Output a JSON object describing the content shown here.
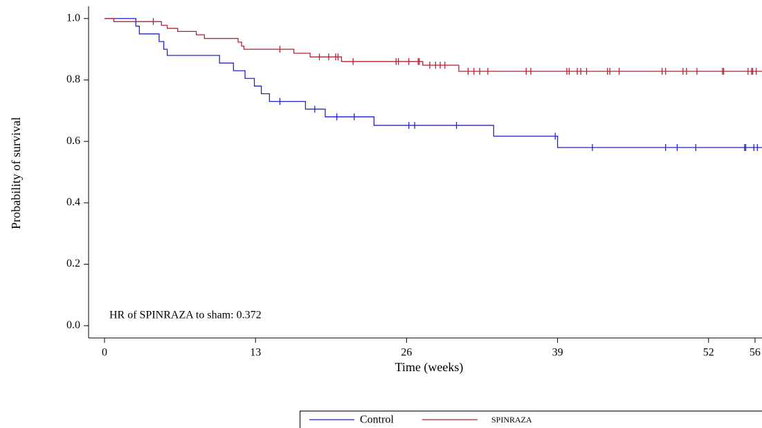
{
  "chart_data": {
    "type": "step",
    "xlabel": "Time (weeks)",
    "ylabel": "Probability of survival",
    "annotation": "HR of SPINRAZA to sham: 0.372",
    "xlim": [
      -1.37,
      56.6
    ],
    "ylim": [
      -0.04,
      1.04
    ],
    "xticks": [
      0,
      13,
      26,
      39,
      52,
      56
    ],
    "yticks": [
      {
        "value": 0,
        "label": "0.0"
      },
      {
        "value": 0.2,
        "label": "0.2"
      },
      {
        "value": 0.4,
        "label": "0.4"
      },
      {
        "value": 0.6,
        "label": "0.6"
      },
      {
        "value": 0.8,
        "label": "0.8"
      },
      {
        "value": 1,
        "label": "1.0"
      }
    ],
    "series": [
      {
        "name": "Control",
        "color": "#2222cc",
        "x": [
          0,
          2.7,
          3.0,
          4.7,
          5.1,
          5.4,
          9.9,
          11.1,
          12.1,
          12.9,
          13.5,
          14.2,
          17.3,
          19.0,
          23.2,
          33.5,
          39.0
        ],
        "values": [
          1.0,
          0.975,
          0.95,
          0.925,
          0.9,
          0.88,
          0.855,
          0.83,
          0.805,
          0.78,
          0.755,
          0.73,
          0.705,
          0.68,
          0.652,
          0.617,
          0.58
        ],
        "censor_x": [
          15.1,
          18.1,
          20.0,
          21.5,
          26.2,
          26.7,
          30.3,
          38.8,
          42.0,
          48.3,
          49.3,
          50.9,
          55.1,
          55.2,
          55.9,
          56.2
        ],
        "censor_values": [
          0.73,
          0.705,
          0.68,
          0.68,
          0.652,
          0.652,
          0.652,
          0.617,
          0.58,
          0.58,
          0.58,
          0.58,
          0.58,
          0.58,
          0.58,
          0.58
        ]
      },
      {
        "name": "SPINRAZA",
        "color": "#b22234",
        "x": [
          0,
          0.8,
          4.9,
          5.4,
          6.3,
          7.9,
          8.6,
          11.5,
          11.8,
          12.0,
          16.3,
          17.7,
          20.4,
          27.4,
          30.5
        ],
        "values": [
          1.0,
          0.99,
          0.978,
          0.968,
          0.958,
          0.947,
          0.935,
          0.923,
          0.91,
          0.9,
          0.887,
          0.875,
          0.86,
          0.848,
          0.828
        ],
        "censor_x": [
          4.2,
          15.1,
          18.5,
          19.3,
          19.9,
          20.1,
          21.4,
          25.1,
          25.3,
          26.2,
          27.0,
          27.1,
          28.0,
          28.5,
          28.9,
          29.3,
          31.3,
          31.8,
          32.3,
          33.0,
          36.3,
          36.7,
          39.8,
          40.0,
          40.7,
          41.0,
          41.5,
          43.3,
          43.5,
          44.3,
          48.0,
          48.3,
          49.8,
          50.1,
          51.0,
          53.2,
          53.3,
          55.4,
          55.7,
          55.8,
          56.1
        ],
        "censor_values": [
          0.99,
          0.9,
          0.875,
          0.875,
          0.875,
          0.875,
          0.86,
          0.86,
          0.86,
          0.86,
          0.86,
          0.86,
          0.848,
          0.848,
          0.848,
          0.848,
          0.828,
          0.828,
          0.828,
          0.828,
          0.828,
          0.828,
          0.828,
          0.828,
          0.828,
          0.828,
          0.828,
          0.828,
          0.828,
          0.828,
          0.828,
          0.828,
          0.828,
          0.828,
          0.828,
          0.828,
          0.828,
          0.828,
          0.828,
          0.828,
          0.828
        ]
      }
    ]
  }
}
